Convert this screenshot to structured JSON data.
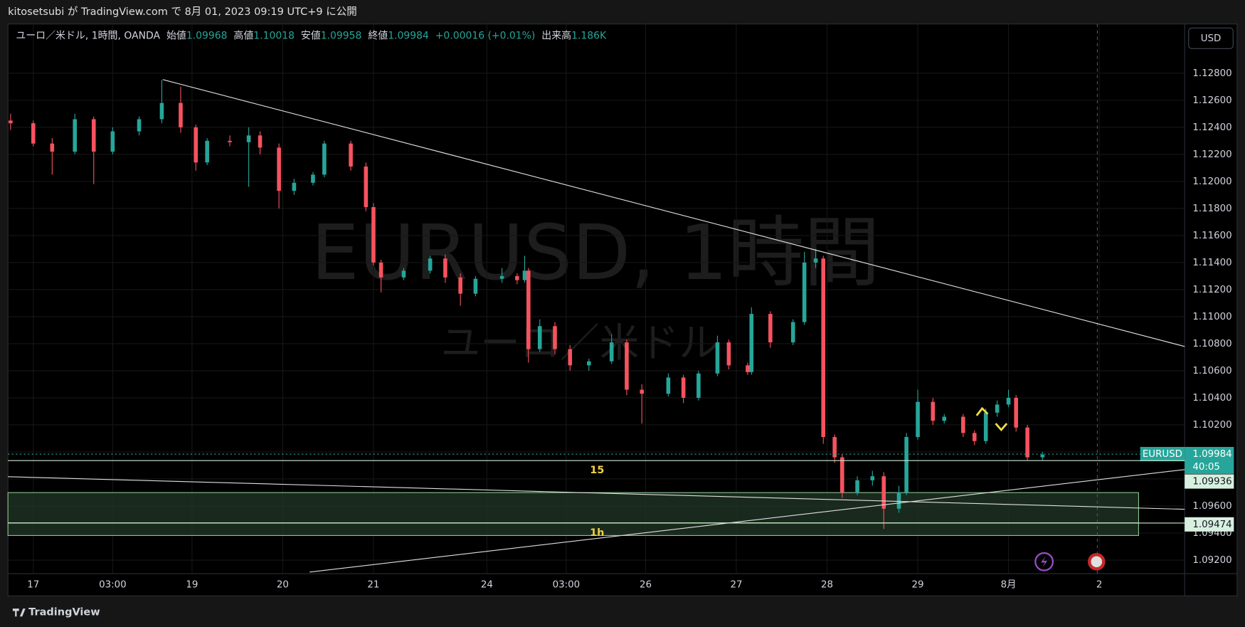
{
  "header": {
    "published": "kitosetsubi が TradingView.com で 8月 01, 2023 09:19 UTC+9 に公開",
    "brand": "TradingView"
  },
  "chart_data": {
    "type": "candlestick",
    "title": "ユーロ／米ドル, 1時間, OANDA",
    "legend": [
      {
        "label": "始値",
        "value": "1.09968"
      },
      {
        "label": "高値",
        "value": "1.10018"
      },
      {
        "label": "安値",
        "value": "1.09958"
      },
      {
        "label": "終値",
        "value": "1.09984"
      },
      {
        "label": "",
        "value": "+0.00016 (+0.01%)"
      },
      {
        "label": "出来高",
        "value": "1.186K"
      }
    ],
    "watermark": [
      "EURUSD, 1時間",
      "ユーロ／米ドル"
    ],
    "currency": "USD",
    "up_color": "#26a69a",
    "down_color": "#f7525f",
    "x": [
      -6,
      0,
      5,
      11,
      16,
      21,
      28,
      34,
      39,
      43,
      46,
      52,
      57,
      60,
      65,
      69,
      74,
      77,
      84,
      88,
      90,
      92,
      98,
      105,
      109,
      113,
      117,
      124,
      128,
      130,
      131,
      134,
      138,
      142,
      147,
      153,
      157,
      161,
      168,
      172,
      176,
      181,
      184,
      189,
      190,
      195,
      201,
      204,
      207,
      209,
      212,
      214,
      218,
      222,
      225,
      229,
      231,
      234,
      238,
      241,
      246,
      249,
      252,
      255,
      258,
      260,
      263,
      267
    ],
    "open": [
      1.1245,
      1.1243,
      1.1228,
      1.1222,
      1.1246,
      1.1222,
      1.1237,
      1.1246,
      1.1258,
      1.124,
      1.1214,
      1.123,
      1.1229,
      1.1234,
      1.1225,
      1.1193,
      1.1199,
      1.1205,
      1.1228,
      1.1211,
      1.1181,
      1.114,
      1.1129,
      1.1134,
      1.1143,
      1.1129,
      1.1117,
      1.1128,
      1.113,
      1.1127,
      1.1134,
      1.1076,
      1.1093,
      1.1076,
      1.1064,
      1.1067,
      1.1081,
      1.1046,
      1.1043,
      1.1055,
      1.104,
      1.1058,
      1.1081,
      1.1064,
      1.1059,
      1.1102,
      1.1081,
      1.1096,
      1.114,
      1.1143,
      1.1011,
      1.0996,
      1.097,
      1.0979,
      1.0982,
      1.0958,
      1.097,
      1.1011,
      1.1037,
      1.1023,
      1.1026,
      1.1014,
      1.1008,
      1.1029,
      1.1035,
      1.104,
      1.1018,
      1.0996
    ],
    "high": [
      1.125,
      1.1245,
      1.1232,
      1.125,
      1.1248,
      1.124,
      1.1248,
      1.1275,
      1.127,
      1.1242,
      1.1232,
      1.1234,
      1.124,
      1.1237,
      1.1228,
      1.1202,
      1.1207,
      1.123,
      1.123,
      1.1214,
      1.1184,
      1.1142,
      1.1136,
      1.1145,
      1.1146,
      1.1132,
      1.113,
      1.1136,
      1.1132,
      1.1145,
      1.1136,
      1.1098,
      1.1096,
      1.1079,
      1.1069,
      1.1087,
      1.1083,
      1.105,
      1.1058,
      1.1057,
      1.106,
      1.1086,
      1.1083,
      1.1066,
      1.1107,
      1.1104,
      1.1098,
      1.1148,
      1.115,
      1.1145,
      1.1013,
      1.0998,
      1.0982,
      1.0986,
      1.0985,
      1.0975,
      1.1014,
      1.1046,
      1.104,
      1.1028,
      1.1028,
      1.1016,
      1.1032,
      1.1038,
      1.1046,
      1.1042,
      1.102,
      1.1
    ],
    "low": [
      1.1238,
      1.1226,
      1.1205,
      1.122,
      1.1198,
      1.122,
      1.1234,
      1.1243,
      1.1236,
      1.1208,
      1.1212,
      1.1226,
      1.1196,
      1.122,
      1.118,
      1.119,
      1.1197,
      1.1203,
      1.1208,
      1.1178,
      1.1138,
      1.1118,
      1.1127,
      1.1132,
      1.1125,
      1.1108,
      1.1115,
      1.1125,
      1.1124,
      1.1125,
      1.1066,
      1.1074,
      1.1072,
      1.106,
      1.106,
      1.1065,
      1.1042,
      1.1021,
      1.1041,
      1.1036,
      1.1038,
      1.1056,
      1.1061,
      1.1057,
      1.1057,
      1.1077,
      1.1079,
      1.1094,
      1.1136,
      1.1006,
      1.0992,
      1.0966,
      1.0968,
      1.0975,
      1.0943,
      1.0955,
      1.0968,
      1.1009,
      1.102,
      1.1021,
      1.1011,
      1.1005,
      1.1006,
      1.1026,
      1.1033,
      1.1015,
      1.0994,
      1.0994
    ],
    "close": [
      1.1243,
      1.1228,
      1.1222,
      1.1246,
      1.1222,
      1.1237,
      1.1246,
      1.1258,
      1.124,
      1.1214,
      1.123,
      1.1229,
      1.1234,
      1.1225,
      1.1193,
      1.1199,
      1.1205,
      1.1228,
      1.1211,
      1.1181,
      1.114,
      1.1129,
      1.1134,
      1.1143,
      1.1129,
      1.1117,
      1.1128,
      1.113,
      1.1127,
      1.1134,
      1.1076,
      1.1093,
      1.1076,
      1.1064,
      1.1067,
      1.1081,
      1.1046,
      1.1043,
      1.1055,
      1.104,
      1.1058,
      1.1081,
      1.1064,
      1.1059,
      1.1102,
      1.1081,
      1.1096,
      1.114,
      1.1143,
      1.1011,
      1.0996,
      1.097,
      1.0979,
      1.0982,
      1.0958,
      1.097,
      1.1011,
      1.1037,
      1.1023,
      1.1026,
      1.1014,
      1.1008,
      1.1029,
      1.1035,
      1.104,
      1.1018,
      1.0996,
      1.0998
    ],
    "xlim": [
      -6.7,
      304.6
    ],
    "ylim": [
      1.091,
      1.13164
    ],
    "xticks": [
      {
        "value": 0,
        "label": "17"
      },
      {
        "value": 21,
        "label": "03:00"
      },
      {
        "value": 42,
        "label": "19"
      },
      {
        "value": 66,
        "label": "20"
      },
      {
        "value": 90,
        "label": "21"
      },
      {
        "value": 120,
        "label": "24"
      },
      {
        "value": 141,
        "label": "03:00"
      },
      {
        "value": 162,
        "label": "26"
      },
      {
        "value": 186,
        "label": "27"
      },
      {
        "value": 210,
        "label": "28"
      },
      {
        "value": 234,
        "label": "29"
      },
      {
        "value": 258,
        "label": "8月"
      },
      {
        "value": 282,
        "label": "2"
      }
    ],
    "yticks": [
      {
        "value": 1.092,
        "label": "1.09200"
      },
      {
        "value": 1.094,
        "label": "1.09400"
      },
      {
        "value": 1.096,
        "label": "1.09600"
      },
      {
        "value": 1.098,
        "label": "1.09800"
      },
      {
        "value": 1.1,
        "label": "1.10000"
      },
      {
        "value": 1.102,
        "label": "1.10200"
      },
      {
        "value": 1.104,
        "label": "1.10400"
      },
      {
        "value": 1.106,
        "label": "1.10600"
      },
      {
        "value": 1.108,
        "label": "1.10800"
      },
      {
        "value": 1.11,
        "label": "1.11000"
      },
      {
        "value": 1.112,
        "label": "1.11200"
      },
      {
        "value": 1.114,
        "label": "1.11400"
      },
      {
        "value": 1.116,
        "label": "1.11600"
      },
      {
        "value": 1.118,
        "label": "1.11800"
      },
      {
        "value": 1.12,
        "label": "1.12000"
      },
      {
        "value": 1.122,
        "label": "1.12200"
      },
      {
        "value": 1.124,
        "label": "1.12400"
      },
      {
        "value": 1.126,
        "label": "1.12600"
      },
      {
        "value": 1.128,
        "label": "1.12800"
      }
    ],
    "price_tag": {
      "name": "EURUSD",
      "value": 1.09984,
      "label": "1.09984",
      "countdown": "40:05"
    },
    "level_tags": [
      {
        "value": 1.09936,
        "label": "1.09936"
      },
      {
        "value": 1.09474,
        "label": "1.09474"
      }
    ],
    "zone_labels": [
      "15",
      "1h"
    ]
  }
}
